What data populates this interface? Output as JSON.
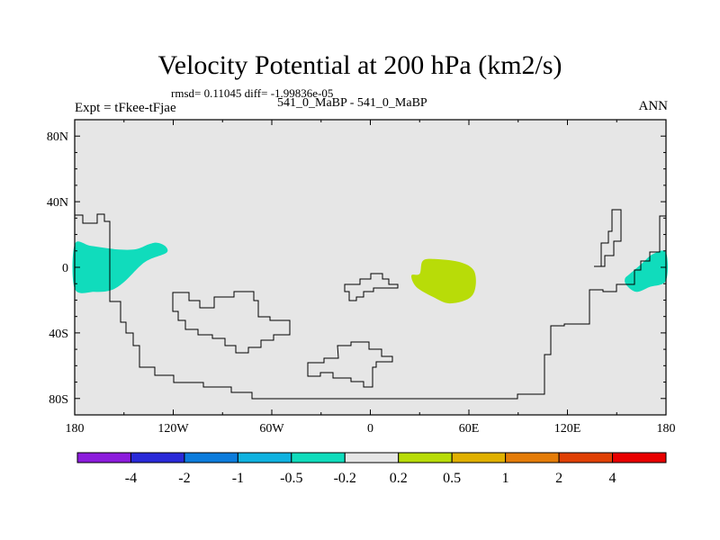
{
  "header": {
    "title": "Velocity Potential at 200 hPa (km2/s)",
    "stats": "rmsd= 0.11045 diff= -1.99836e-05",
    "experiment": "Expt = tFkee-tFjae",
    "cases": "541_0_MaBP - 541_0_MaBP",
    "season": "ANN"
  },
  "chart_data": {
    "type": "heatmap",
    "title": "Velocity Potential at 200 hPa (km2/s)",
    "map_projection": "cylindrical equidistant",
    "xlim": [
      -180,
      180
    ],
    "ylim": [
      -90,
      90
    ],
    "x_ticks": [
      {
        "value": -180,
        "label": "180"
      },
      {
        "value": -120,
        "label": "120W"
      },
      {
        "value": -60,
        "label": "60W"
      },
      {
        "value": 0,
        "label": "0"
      },
      {
        "value": 60,
        "label": "60E"
      },
      {
        "value": 120,
        "label": "120E"
      },
      {
        "value": 180,
        "label": "180"
      }
    ],
    "y_ticks": [
      {
        "value": 80,
        "label": "80N"
      },
      {
        "value": 40,
        "label": "40N"
      },
      {
        "value": 0,
        "label": "0"
      },
      {
        "value": -40,
        "label": "40S"
      },
      {
        "value": -80,
        "label": "80S"
      }
    ],
    "background_bin_color": "#e6e6e6",
    "colorbar": {
      "levels": [
        "-4",
        "-2",
        "-1",
        "-0.5",
        "-0.2",
        "0.2",
        "0.5",
        "1",
        "2",
        "4"
      ],
      "colors": [
        "#8c1cdc",
        "#2a2ad8",
        "#0c7cdc",
        "#10b2e0",
        "#10dcbc",
        "#e6e6e6",
        "#b8dc08",
        "#e0b000",
        "#e47c08",
        "#e04004",
        "#e80000"
      ]
    },
    "anomaly_regions": [
      {
        "bin": "-0.5 to -0.2",
        "color": "#10dcbc",
        "outline": [
          [
            -180,
            14
          ],
          [
            -170,
            13
          ],
          [
            -155,
            11
          ],
          [
            -143,
            11
          ],
          [
            -135,
            14
          ],
          [
            -130,
            15
          ],
          [
            -125,
            13
          ],
          [
            -124,
            9
          ],
          [
            -134,
            5
          ],
          [
            -140,
            1
          ],
          [
            -150,
            -9
          ],
          [
            -158,
            -14
          ],
          [
            -168,
            -15
          ],
          [
            -180,
            -13
          ]
        ]
      },
      {
        "bin": "-0.5 to -0.2",
        "color": "#10dcbc",
        "outline": [
          [
            180,
            9
          ],
          [
            172,
            8
          ],
          [
            165,
            2
          ],
          [
            158,
            -4
          ],
          [
            155,
            -7
          ],
          [
            156,
            -11
          ],
          [
            162,
            -15
          ],
          [
            170,
            -12
          ],
          [
            180,
            -8
          ]
        ]
      },
      {
        "bin": "0.2 to 0.5",
        "color": "#b8dc08",
        "outline": [
          [
            30,
            -4
          ],
          [
            32,
            4
          ],
          [
            40,
            5
          ],
          [
            55,
            3
          ],
          [
            63,
            -2
          ],
          [
            64,
            -12
          ],
          [
            60,
            -19
          ],
          [
            48,
            -22
          ],
          [
            38,
            -18
          ],
          [
            28,
            -12
          ],
          [
            25,
            -5
          ]
        ]
      }
    ],
    "coastline": "topography land-sea boundary outline drawn as thin black stepped contour (aquaplanet-style continents)"
  }
}
